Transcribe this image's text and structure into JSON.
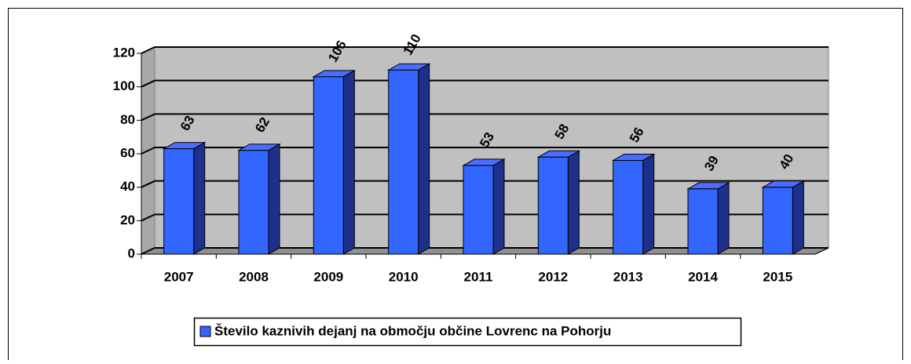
{
  "chart_data": {
    "type": "bar3d",
    "categories": [
      "2007",
      "2008",
      "2009",
      "2010",
      "2011",
      "2012",
      "2013",
      "2014",
      "2015"
    ],
    "series": [
      {
        "name": "Število kaznivih dejanj na območju občine Lovrenc na Pohorju",
        "color": "#3366ff",
        "values": [
          63,
          62,
          106,
          110,
          53,
          58,
          56,
          39,
          40
        ]
      }
    ],
    "ylim": [
      0,
      120
    ],
    "yticks": [
      0,
      20,
      40,
      60,
      80,
      100,
      120
    ],
    "grid": true,
    "legend": "bottom"
  }
}
